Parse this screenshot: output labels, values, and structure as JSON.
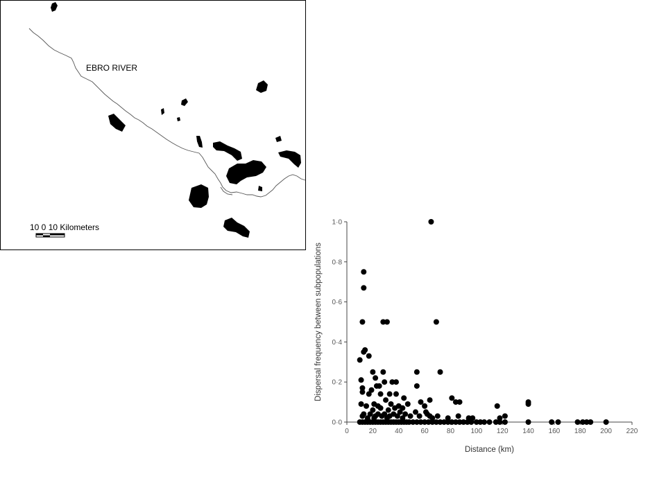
{
  "map": {
    "river_label": "EBRO RIVER",
    "scale_label": "10   0    10 Kilometers"
  },
  "chart_data": {
    "type": "scatter",
    "xlabel": "Distance (km)",
    "ylabel": "Dispersal frequency between subpopulations",
    "xlim": [
      0,
      220
    ],
    "ylim": [
      0,
      1
    ],
    "x_ticks": [
      0,
      20,
      40,
      60,
      80,
      100,
      120,
      140,
      160,
      180,
      200,
      220
    ],
    "x_tick_labels": [
      "0",
      "20",
      "40",
      "60",
      "80",
      "100",
      "120",
      "140",
      "160",
      "180",
      "200",
      "220"
    ],
    "y_ticks": [
      0,
      0.2,
      0.4,
      0.6,
      0.8,
      1.0
    ],
    "y_tick_labels": [
      "0·0",
      "0·2",
      "0·4",
      "0·6",
      "0·8",
      "1·0"
    ],
    "grid": false,
    "points": [
      {
        "x": 65,
        "y": 1.0
      },
      {
        "x": 13,
        "y": 0.75
      },
      {
        "x": 13,
        "y": 0.67
      },
      {
        "x": 12,
        "y": 0.5
      },
      {
        "x": 28,
        "y": 0.5
      },
      {
        "x": 31,
        "y": 0.5
      },
      {
        "x": 69,
        "y": 0.5
      },
      {
        "x": 14,
        "y": 0.36
      },
      {
        "x": 13,
        "y": 0.35
      },
      {
        "x": 17,
        "y": 0.33
      },
      {
        "x": 10,
        "y": 0.31
      },
      {
        "x": 54,
        "y": 0.25
      },
      {
        "x": 72,
        "y": 0.25
      },
      {
        "x": 20,
        "y": 0.25
      },
      {
        "x": 28,
        "y": 0.25
      },
      {
        "x": 11,
        "y": 0.21
      },
      {
        "x": 22,
        "y": 0.22
      },
      {
        "x": 29,
        "y": 0.2
      },
      {
        "x": 35,
        "y": 0.2
      },
      {
        "x": 38,
        "y": 0.2
      },
      {
        "x": 25,
        "y": 0.18
      },
      {
        "x": 23,
        "y": 0.18
      },
      {
        "x": 54,
        "y": 0.18
      },
      {
        "x": 12,
        "y": 0.17
      },
      {
        "x": 12,
        "y": 0.15
      },
      {
        "x": 17,
        "y": 0.14
      },
      {
        "x": 19,
        "y": 0.16
      },
      {
        "x": 26,
        "y": 0.14
      },
      {
        "x": 33,
        "y": 0.14
      },
      {
        "x": 38,
        "y": 0.14
      },
      {
        "x": 44,
        "y": 0.12
      },
      {
        "x": 81,
        "y": 0.12
      },
      {
        "x": 64,
        "y": 0.11
      },
      {
        "x": 30,
        "y": 0.11
      },
      {
        "x": 57,
        "y": 0.1
      },
      {
        "x": 84,
        "y": 0.1
      },
      {
        "x": 87,
        "y": 0.1
      },
      {
        "x": 140,
        "y": 0.1
      },
      {
        "x": 140,
        "y": 0.09
      },
      {
        "x": 11,
        "y": 0.09
      },
      {
        "x": 21,
        "y": 0.09
      },
      {
        "x": 34,
        "y": 0.09
      },
      {
        "x": 47,
        "y": 0.09
      },
      {
        "x": 116,
        "y": 0.08
      },
      {
        "x": 15,
        "y": 0.08
      },
      {
        "x": 24,
        "y": 0.08
      },
      {
        "x": 40,
        "y": 0.08
      },
      {
        "x": 60,
        "y": 0.08
      },
      {
        "x": 26,
        "y": 0.07
      },
      {
        "x": 37,
        "y": 0.07
      },
      {
        "x": 43,
        "y": 0.07
      },
      {
        "x": 20,
        "y": 0.06
      },
      {
        "x": 32,
        "y": 0.06
      },
      {
        "x": 41,
        "y": 0.05
      },
      {
        "x": 61,
        "y": 0.05
      },
      {
        "x": 53,
        "y": 0.05
      },
      {
        "x": 13,
        "y": 0.04
      },
      {
        "x": 18,
        "y": 0.04
      },
      {
        "x": 24,
        "y": 0.04
      },
      {
        "x": 29,
        "y": 0.04
      },
      {
        "x": 36,
        "y": 0.04
      },
      {
        "x": 45,
        "y": 0.04
      },
      {
        "x": 62,
        "y": 0.04
      },
      {
        "x": 86,
        "y": 0.03
      },
      {
        "x": 70,
        "y": 0.03
      },
      {
        "x": 122,
        "y": 0.03
      },
      {
        "x": 12,
        "y": 0.03
      },
      {
        "x": 22,
        "y": 0.03
      },
      {
        "x": 27,
        "y": 0.03
      },
      {
        "x": 33,
        "y": 0.03
      },
      {
        "x": 39,
        "y": 0.03
      },
      {
        "x": 49,
        "y": 0.03
      },
      {
        "x": 56,
        "y": 0.03
      },
      {
        "x": 64,
        "y": 0.03
      },
      {
        "x": 94,
        "y": 0.02
      },
      {
        "x": 16,
        "y": 0.02
      },
      {
        "x": 31,
        "y": 0.02
      },
      {
        "x": 43,
        "y": 0.02
      },
      {
        "x": 66,
        "y": 0.02
      },
      {
        "x": 78,
        "y": 0.02
      },
      {
        "x": 97,
        "y": 0.02
      },
      {
        "x": 118,
        "y": 0.02
      },
      {
        "x": 21,
        "y": 0.02
      },
      {
        "x": 10,
        "y": 0.0
      },
      {
        "x": 12,
        "y": 0.0
      },
      {
        "x": 14,
        "y": 0.0
      },
      {
        "x": 16,
        "y": 0.0
      },
      {
        "x": 18,
        "y": 0.0
      },
      {
        "x": 20,
        "y": 0.0
      },
      {
        "x": 22,
        "y": 0.0
      },
      {
        "x": 24,
        "y": 0.0
      },
      {
        "x": 26,
        "y": 0.0
      },
      {
        "x": 28,
        "y": 0.0
      },
      {
        "x": 30,
        "y": 0.0
      },
      {
        "x": 32,
        "y": 0.0
      },
      {
        "x": 34,
        "y": 0.0
      },
      {
        "x": 36,
        "y": 0.0
      },
      {
        "x": 38,
        "y": 0.0
      },
      {
        "x": 40,
        "y": 0.0
      },
      {
        "x": 42,
        "y": 0.0
      },
      {
        "x": 44,
        "y": 0.0
      },
      {
        "x": 46,
        "y": 0.0
      },
      {
        "x": 48,
        "y": 0.0
      },
      {
        "x": 51,
        "y": 0.0
      },
      {
        "x": 54,
        "y": 0.0
      },
      {
        "x": 57,
        "y": 0.0
      },
      {
        "x": 60,
        "y": 0.0
      },
      {
        "x": 63,
        "y": 0.0
      },
      {
        "x": 66,
        "y": 0.0
      },
      {
        "x": 69,
        "y": 0.0
      },
      {
        "x": 72,
        "y": 0.0
      },
      {
        "x": 75,
        "y": 0.0
      },
      {
        "x": 78,
        "y": 0.0
      },
      {
        "x": 81,
        "y": 0.0
      },
      {
        "x": 84,
        "y": 0.0
      },
      {
        "x": 87,
        "y": 0.0
      },
      {
        "x": 90,
        "y": 0.0
      },
      {
        "x": 93,
        "y": 0.0
      },
      {
        "x": 96,
        "y": 0.0
      },
      {
        "x": 100,
        "y": 0.0
      },
      {
        "x": 103,
        "y": 0.0
      },
      {
        "x": 106,
        "y": 0.0
      },
      {
        "x": 110,
        "y": 0.0
      },
      {
        "x": 115,
        "y": 0.0
      },
      {
        "x": 118,
        "y": 0.0
      },
      {
        "x": 122,
        "y": 0.0
      },
      {
        "x": 140,
        "y": 0.0
      },
      {
        "x": 158,
        "y": 0.0
      },
      {
        "x": 163,
        "y": 0.0
      },
      {
        "x": 178,
        "y": 0.0
      },
      {
        "x": 182,
        "y": 0.0
      },
      {
        "x": 185,
        "y": 0.0
      },
      {
        "x": 188,
        "y": 0.0
      },
      {
        "x": 200,
        "y": 0.0
      }
    ]
  }
}
